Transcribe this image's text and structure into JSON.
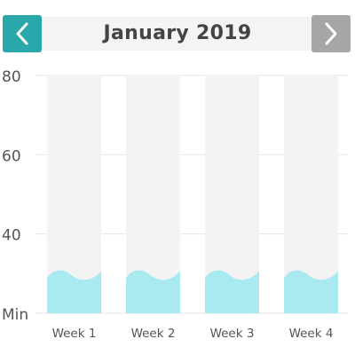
{
  "header": {
    "title": "January 2019",
    "prev_button_color": "#2aa7aa",
    "next_button_color": "#a6a6a6"
  },
  "chart_data": {
    "type": "area",
    "title": "",
    "xlabel": "",
    "ylabel": "",
    "categories": [
      "Week 1",
      "Week 2",
      "Week 3",
      "Week 4"
    ],
    "values": [
      30,
      30,
      30,
      30
    ],
    "y_tick_labels": [
      "Min",
      "40",
      "60",
      "80"
    ],
    "ylim": [
      20,
      80
    ],
    "grid": true,
    "fill_color": "#a8eaf0",
    "column_background_color": "#f3f3f3"
  }
}
